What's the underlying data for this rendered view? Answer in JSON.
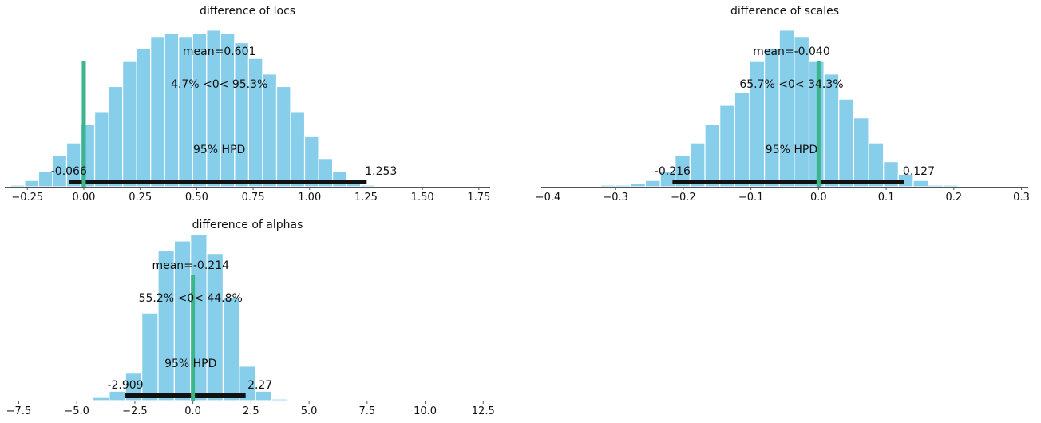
{
  "colors": {
    "bar": "#87ceeb",
    "bar_edge": "#ffffff",
    "ref_line": "#3cb48c",
    "hpd_bar": "#111111",
    "axis": "#555555"
  },
  "chart_data": [
    {
      "type": "bar",
      "title": "difference of locs",
      "xlim": [
        -0.35,
        1.8
      ],
      "ylim": [
        0,
        52
      ],
      "xticks": [
        -0.25,
        0.0,
        0.25,
        0.5,
        0.75,
        1.0,
        1.25,
        1.5,
        1.75
      ],
      "xtick_labels": [
        "−0.25",
        "0.00",
        "0.25",
        "0.50",
        "0.75",
        "1.00",
        "1.25",
        "1.50",
        "1.75"
      ],
      "bin_edges": [
        -0.324,
        -0.262,
        -0.2,
        -0.138,
        -0.076,
        -0.014,
        0.048,
        0.11,
        0.172,
        0.234,
        0.296,
        0.358,
        0.42,
        0.482,
        0.544,
        0.606,
        0.668,
        0.73,
        0.792,
        0.854,
        0.916,
        0.978,
        1.04,
        1.102,
        1.164,
        1.226,
        1.288,
        1.35,
        1.412,
        1.474,
        1.536
      ],
      "counts": [
        0.5,
        2,
        5,
        10,
        14,
        20,
        24,
        32,
        40,
        44,
        48,
        49,
        48,
        49,
        50,
        49,
        46,
        41,
        36,
        32,
        24,
        16,
        9,
        5,
        2,
        0.5,
        0,
        0,
        0,
        0
      ],
      "mean_label": "mean=0.601",
      "ref_label": "4.7% <0< 95.3%",
      "ref_value": 0.0,
      "hpd_label": "95% HPD",
      "hpd_low": -0.066,
      "hpd_high": 1.253,
      "hpd_low_label": "-0.066",
      "hpd_high_label": "1.253"
    },
    {
      "type": "bar",
      "title": "difference of scales",
      "xlim": [
        -0.41,
        0.31
      ],
      "ylim": [
        0,
        52
      ],
      "xticks": [
        -0.4,
        -0.3,
        -0.2,
        -0.1,
        0.0,
        0.1,
        0.2,
        0.3
      ],
      "xtick_labels": [
        "−0.4",
        "−0.3",
        "−0.2",
        "−0.1",
        "0.0",
        "0.1",
        "0.2",
        "0.3"
      ],
      "bin_edges": [
        -0.322,
        -0.3,
        -0.278,
        -0.256,
        -0.234,
        -0.212,
        -0.19,
        -0.168,
        -0.146,
        -0.124,
        -0.102,
        -0.08,
        -0.058,
        -0.036,
        -0.014,
        0.008,
        0.03,
        0.052,
        0.074,
        0.096,
        0.118,
        0.14,
        0.162,
        0.184,
        0.206
      ],
      "counts": [
        0.5,
        0.5,
        1,
        2,
        5,
        10,
        14,
        20,
        26,
        30,
        40,
        44,
        50,
        48,
        40,
        36,
        28,
        22,
        14,
        8,
        4,
        2,
        0.5,
        0.5
      ],
      "mean_label": "mean=-0.040",
      "ref_label": "65.7% <0< 34.3%",
      "ref_value": 0.0,
      "hpd_label": "95% HPD",
      "hpd_low": -0.216,
      "hpd_high": 0.127,
      "hpd_low_label": "-0.216",
      "hpd_high_label": "0.127"
    },
    {
      "type": "bar",
      "title": "difference of alphas",
      "xlim": [
        -8.1,
        12.8
      ],
      "ylim": [
        0,
        52
      ],
      "xticks": [
        -7.5,
        -5.0,
        -2.5,
        0.0,
        2.5,
        5.0,
        7.5,
        10.0,
        12.5
      ],
      "xtick_labels": [
        "−7.5",
        "−5.0",
        "−2.5",
        "0.0",
        "2.5",
        "5.0",
        "7.5",
        "10.0",
        "12.5"
      ],
      "bin_edges": [
        -5.0,
        -4.3,
        -3.6,
        -2.9,
        -2.2,
        -1.5,
        -0.8,
        -0.1,
        0.6,
        1.3,
        2.0,
        2.7,
        3.4,
        4.1,
        4.8
      ],
      "counts": [
        0.3,
        1,
        3,
        9,
        28,
        48,
        51,
        53,
        47,
        33,
        11,
        3,
        0.5,
        0.3
      ],
      "mean_label": "mean=-0.214",
      "ref_label": "55.2% <0< 44.8%",
      "ref_value": 0.0,
      "hpd_label": "95% HPD",
      "hpd_low": -2.909,
      "hpd_high": 2.27,
      "hpd_low_label": "-2.909",
      "hpd_high_label": "2.27"
    }
  ]
}
